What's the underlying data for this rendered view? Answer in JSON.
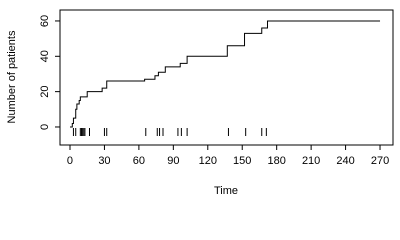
{
  "chart_data": {
    "type": "line",
    "step": "post",
    "x_label": "Time",
    "y_label": "Number of patients",
    "x": [
      0,
      2,
      3,
      5,
      6,
      8,
      9,
      15,
      28,
      32,
      65,
      74,
      77,
      83,
      96,
      102,
      137,
      152,
      167,
      172,
      270
    ],
    "series": [
      {
        "color": "#000000",
        "values": [
          0,
          2,
          5,
          10,
          13,
          15,
          17,
          20,
          22,
          26,
          27,
          29,
          31,
          34,
          36,
          40,
          46,
          53,
          56,
          60,
          60
        ]
      }
    ],
    "rug": [
      3,
      5,
      9,
      10,
      11,
      12,
      13,
      17,
      30,
      32,
      66,
      76,
      78,
      81,
      94,
      97,
      102,
      138,
      153,
      167,
      171
    ],
    "xlim": [
      -8.7,
      281.3
    ],
    "ylim": [
      -10.2,
      66.2
    ],
    "xticks": [
      0,
      30,
      60,
      90,
      120,
      150,
      180,
      210,
      240,
      270
    ],
    "yticks": [
      0,
      20,
      40,
      60
    ]
  }
}
